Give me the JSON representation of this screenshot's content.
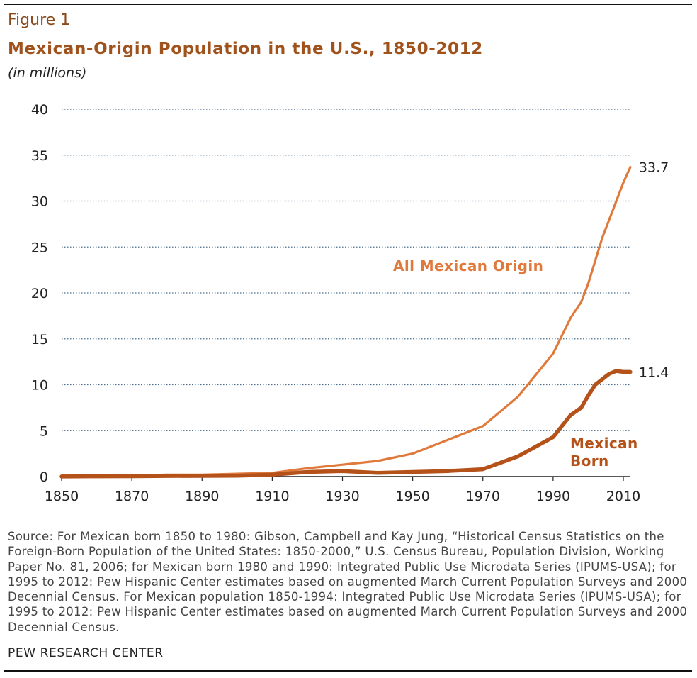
{
  "figure_label": "Figure 1",
  "title": "Mexican-Origin Population in the U.S., 1850-2012",
  "subtitle": "(in millions)",
  "source": "Source: For Mexican born 1850 to 1980: Gibson, Campbell and Kay Jung, “Historical Census Statistics on the Foreign-Born Population of the United States: 1850-2000,” U.S. Census Bureau, Population Division, Working Paper No. 81, 2006; for Mexican born 1980 and 1990: Integrated Public Use Microdata Series (IPUMS-USA); for 1995 to 2012: Pew Hispanic Center estimates based on augmented March Current Population Surveys and 2000 Decennial Census. For Mexican population 1850-1994: Integrated Public Use Microdata Series (IPUMS-USA); for 1995 to 2012: Pew Hispanic Center estimates based on augmented March Current Population Surveys and 2000 Decennial Census.",
  "footer": "PEW RESEARCH CENTER",
  "colors": {
    "all_origin": "#e07a3c",
    "mexican_born": "#b5521a",
    "grid": "#4a6d8c",
    "axis": "#222222"
  },
  "chart_data": {
    "type": "line",
    "title": "Mexican-Origin Population in the U.S., 1850-2012",
    "ylabel": "(in millions)",
    "xlim": [
      1850,
      2012
    ],
    "ylim": [
      0,
      40
    ],
    "x_ticks": [
      1850,
      1870,
      1890,
      1910,
      1930,
      1950,
      1970,
      1990,
      2010
    ],
    "y_ticks": [
      0,
      5,
      10,
      15,
      20,
      25,
      30,
      35,
      40
    ],
    "grid": "horizontal dotted",
    "series": [
      {
        "name": "All Mexican Origin",
        "x": [
          1850,
          1860,
          1870,
          1880,
          1890,
          1900,
          1910,
          1920,
          1930,
          1940,
          1950,
          1960,
          1970,
          1980,
          1990,
          1995,
          1998,
          2000,
          2002,
          2004,
          2006,
          2008,
          2010,
          2012
        ],
        "y": [
          0.1,
          0.1,
          0.1,
          0.2,
          0.2,
          0.3,
          0.4,
          0.9,
          1.3,
          1.7,
          2.5,
          4.0,
          5.5,
          8.7,
          13.4,
          17.3,
          19.0,
          21.0,
          23.5,
          26.0,
          28.0,
          30.0,
          32.0,
          33.7
        ],
        "end_label": "33.7"
      },
      {
        "name": "Mexican Born",
        "x": [
          1850,
          1860,
          1870,
          1880,
          1890,
          1900,
          1910,
          1920,
          1930,
          1940,
          1950,
          1960,
          1970,
          1980,
          1990,
          1995,
          1998,
          2000,
          2002,
          2004,
          2006,
          2008,
          2010,
          2012
        ],
        "y": [
          0.01,
          0.03,
          0.04,
          0.07,
          0.08,
          0.1,
          0.2,
          0.5,
          0.6,
          0.4,
          0.5,
          0.6,
          0.8,
          2.2,
          4.3,
          6.7,
          7.5,
          8.8,
          10.0,
          10.6,
          11.2,
          11.5,
          11.4,
          11.4
        ],
        "end_label": "11.4"
      }
    ],
    "annotations": [
      {
        "text": "All Mexican Origin",
        "series": 0
      },
      {
        "text": "Mexican",
        "series": 1
      },
      {
        "text": "Born",
        "series": 1
      }
    ]
  }
}
